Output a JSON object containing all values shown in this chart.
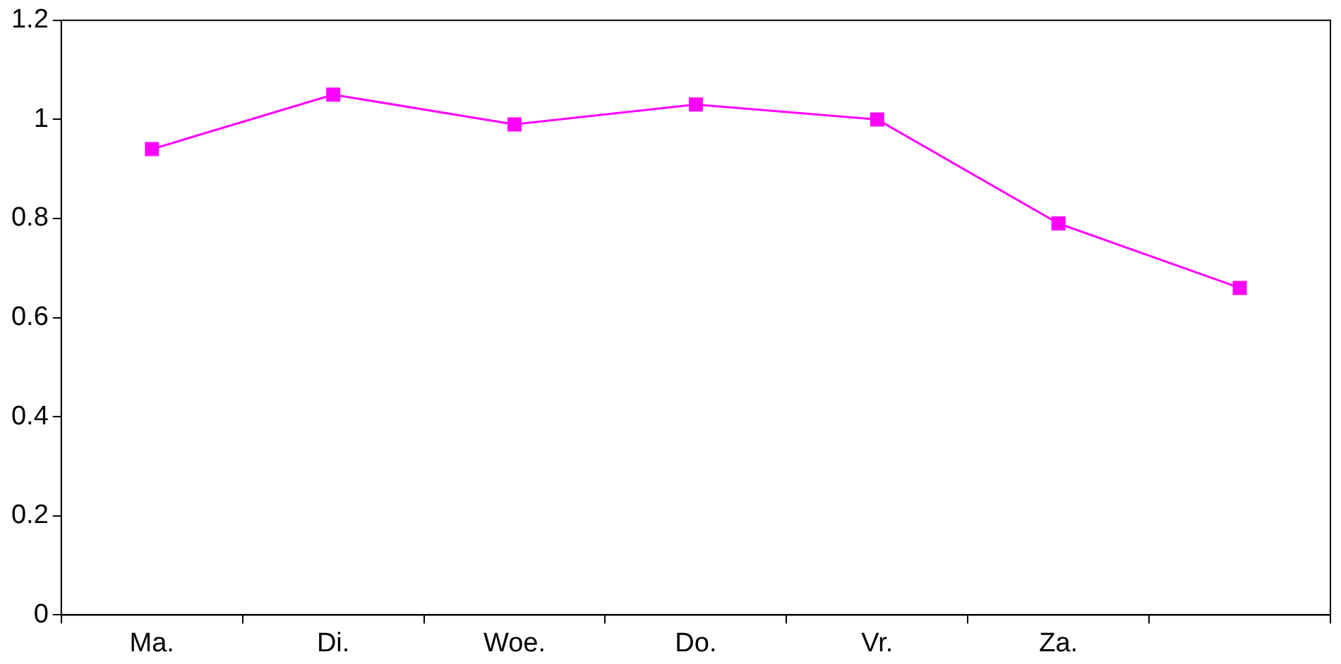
{
  "chart_data": {
    "type": "line",
    "categories": [
      "Ma.",
      "Di.",
      "Woe.",
      "Do.",
      "Vr.",
      "Za.",
      null
    ],
    "series": [
      {
        "color": "#ff00ff",
        "values": [
          0.94,
          1.05,
          0.99,
          1.03,
          1.0,
          0.79,
          0.66
        ]
      }
    ],
    "ylim": [
      0,
      1.2
    ],
    "yticks": [
      0,
      0.2,
      0.4,
      0.6,
      0.8,
      1,
      1.2
    ],
    "grid": false,
    "legend": false,
    "marker": "square",
    "line_style": "solid"
  }
}
